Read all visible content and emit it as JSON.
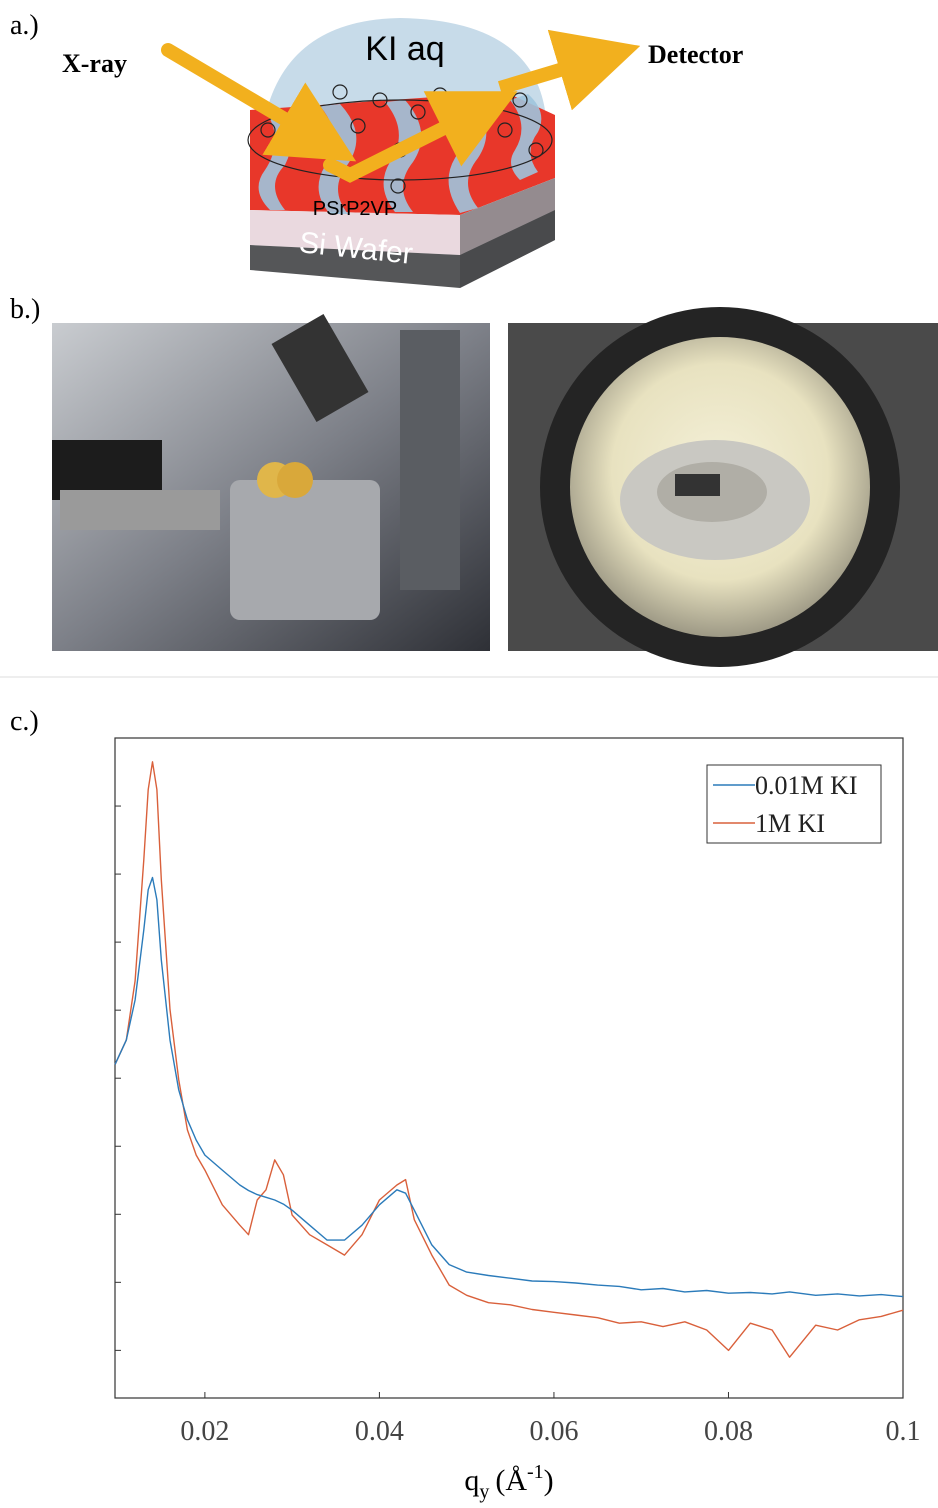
{
  "figure": {
    "panel_a": "a.)",
    "panel_b": "b.)",
    "panel_c": "c.)",
    "xray": "X-ray",
    "droplet": "KI aq",
    "detector": "Detector",
    "polymer": "PSrP2VP",
    "wafer": "Si Wafer"
  },
  "chart_data": {
    "type": "line",
    "x_label": {
      "symbol": "q",
      "subscript": "y",
      "unit": "(Å",
      "superscript": "-1",
      "close": ")"
    },
    "x": [
      0.0097,
      0.011,
      0.012,
      0.013,
      0.0135,
      0.014,
      0.0145,
      0.015,
      0.016,
      0.017,
      0.018,
      0.019,
      0.02,
      0.022,
      0.024,
      0.025,
      0.026,
      0.027,
      0.028,
      0.029,
      0.03,
      0.032,
      0.034,
      0.036,
      0.038,
      0.04,
      0.042,
      0.043,
      0.044,
      0.046,
      0.048,
      0.05,
      0.0525,
      0.055,
      0.0575,
      0.06,
      0.0625,
      0.065,
      0.0675,
      0.07,
      0.0725,
      0.075,
      0.0775,
      0.08,
      0.0825,
      0.085,
      0.087,
      0.09,
      0.0925,
      0.095,
      0.0975,
      0.1
    ],
    "series": [
      {
        "name": "0.01M KI",
        "color": "#2b7bba",
        "values": [
          4.9,
          5.26,
          5.85,
          6.88,
          7.47,
          7.65,
          7.32,
          6.44,
          5.26,
          4.53,
          4.09,
          3.79,
          3.57,
          3.35,
          3.13,
          3.05,
          2.99,
          2.95,
          2.91,
          2.85,
          2.76,
          2.54,
          2.32,
          2.32,
          2.54,
          2.84,
          3.06,
          3.01,
          2.76,
          2.25,
          1.96,
          1.85,
          1.8,
          1.76,
          1.72,
          1.71,
          1.69,
          1.66,
          1.64,
          1.59,
          1.61,
          1.56,
          1.58,
          1.54,
          1.55,
          1.53,
          1.56,
          1.51,
          1.53,
          1.5,
          1.52,
          1.49
        ]
      },
      {
        "name": "1M KI",
        "color": "#d9603b",
        "values": [
          4.9,
          5.26,
          6.13,
          7.91,
          8.94,
          9.35,
          8.94,
          7.62,
          5.71,
          4.68,
          3.94,
          3.57,
          3.35,
          2.84,
          2.54,
          2.4,
          2.91,
          3.06,
          3.5,
          3.28,
          2.69,
          2.4,
          2.25,
          2.1,
          2.4,
          2.91,
          3.13,
          3.21,
          2.62,
          2.1,
          1.66,
          1.51,
          1.4,
          1.37,
          1.3,
          1.26,
          1.22,
          1.18,
          1.1,
          1.12,
          1.05,
          1.12,
          1.0,
          0.7,
          1.1,
          1.0,
          0.6,
          1.07,
          1.0,
          1.15,
          1.2,
          1.29
        ]
      }
    ],
    "xlim": [
      0.0097,
      0.1
    ],
    "xticks": [
      0.02,
      0.04,
      0.06,
      0.08,
      0.1
    ],
    "ylim": [
      0,
      9.7
    ],
    "yticks": [
      0.7,
      1.7,
      2.7,
      3.7,
      4.7,
      5.7,
      6.7,
      7.7,
      8.7
    ],
    "legend": "upper right"
  }
}
